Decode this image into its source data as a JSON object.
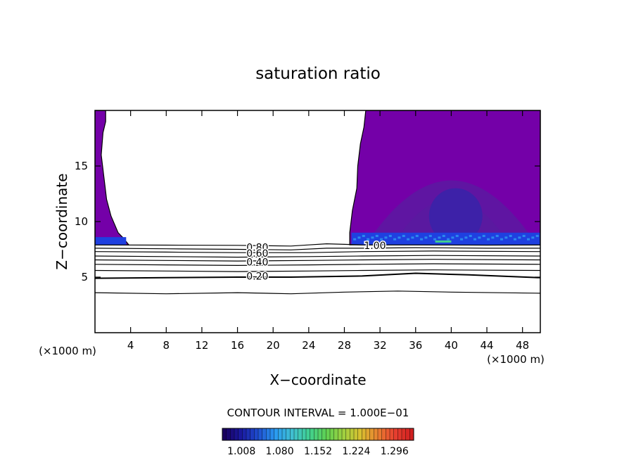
{
  "chart_data": {
    "type": "contour",
    "title": "saturation ratio",
    "xlabel": "X−coordinate",
    "ylabel": "Z−coordinate",
    "x_unit_left": "(×1000 m)",
    "x_unit_right": "(×1000 m)",
    "xlim": [
      0,
      50
    ],
    "ylim": [
      0,
      20
    ],
    "x_ticks": [
      4,
      8,
      12,
      16,
      20,
      24,
      28,
      32,
      36,
      40,
      44,
      48
    ],
    "y_ticks": [
      5,
      10,
      15
    ],
    "contour_interval_text": "CONTOUR INTERVAL = 1.000E−01",
    "contour_labels": [
      {
        "text": "0.80",
        "x": 17.0,
        "z": 7.7
      },
      {
        "text": "0.60",
        "x": 17.0,
        "z": 7.15
      },
      {
        "text": "0.40",
        "x": 17.0,
        "z": 6.35
      },
      {
        "text": "0.20",
        "x": 17.0,
        "z": 5.1
      },
      {
        "text": "1.00",
        "x": 30.2,
        "z": 7.85
      }
    ],
    "contour_lines": [
      {
        "level": 0.9,
        "points": [
          [
            0,
            7.9
          ],
          [
            8,
            7.88
          ],
          [
            16,
            7.86
          ],
          [
            22,
            7.8
          ],
          [
            24,
            7.9
          ],
          [
            26,
            8.0
          ],
          [
            28,
            7.95
          ],
          [
            30,
            7.9
          ],
          [
            36,
            7.9
          ],
          [
            44,
            7.88
          ],
          [
            50,
            7.9
          ]
        ]
      },
      {
        "level": 0.8,
        "points": [
          [
            0,
            7.6
          ],
          [
            8,
            7.55
          ],
          [
            16,
            7.5
          ],
          [
            22,
            7.45
          ],
          [
            26,
            7.6
          ],
          [
            30,
            7.6
          ],
          [
            36,
            7.65
          ],
          [
            44,
            7.6
          ],
          [
            50,
            7.6
          ]
        ]
      },
      {
        "level": 0.7,
        "points": [
          [
            0,
            7.3
          ],
          [
            8,
            7.25
          ],
          [
            16,
            7.2
          ],
          [
            24,
            7.2
          ],
          [
            30,
            7.3
          ],
          [
            38,
            7.35
          ],
          [
            50,
            7.3
          ]
        ]
      },
      {
        "level": 0.6,
        "points": [
          [
            0,
            6.9
          ],
          [
            8,
            6.85
          ],
          [
            16,
            6.8
          ],
          [
            24,
            6.85
          ],
          [
            30,
            6.9
          ],
          [
            38,
            6.95
          ],
          [
            50,
            6.9
          ]
        ]
      },
      {
        "level": 0.5,
        "points": [
          [
            0,
            6.55
          ],
          [
            8,
            6.5
          ],
          [
            16,
            6.45
          ],
          [
            24,
            6.5
          ],
          [
            30,
            6.55
          ],
          [
            38,
            6.6
          ],
          [
            50,
            6.55
          ]
        ]
      },
      {
        "level": 0.4,
        "points": [
          [
            0,
            6.15
          ],
          [
            8,
            6.1
          ],
          [
            16,
            6.05
          ],
          [
            24,
            6.1
          ],
          [
            30,
            6.15
          ],
          [
            38,
            6.2
          ],
          [
            50,
            6.15
          ]
        ]
      },
      {
        "level": 0.3,
        "points": [
          [
            0,
            5.6
          ],
          [
            8,
            5.55
          ],
          [
            16,
            5.5
          ],
          [
            24,
            5.55
          ],
          [
            30,
            5.6
          ],
          [
            38,
            5.65
          ],
          [
            50,
            5.6
          ]
        ]
      },
      {
        "level": 0.2,
        "points": [
          [
            0,
            4.9
          ],
          [
            8,
            4.95
          ],
          [
            16,
            5.0
          ],
          [
            22,
            5.0
          ],
          [
            30,
            5.1
          ],
          [
            36,
            5.35
          ],
          [
            42,
            5.2
          ],
          [
            50,
            4.95
          ]
        ]
      },
      {
        "level": 0.1,
        "points": [
          [
            0,
            3.6
          ],
          [
            8,
            3.5
          ],
          [
            16,
            3.6
          ],
          [
            22,
            3.5
          ],
          [
            28,
            3.65
          ],
          [
            34,
            3.75
          ],
          [
            40,
            3.65
          ],
          [
            50,
            3.55
          ]
        ]
      }
    ],
    "filled_regions": [
      {
        "name": "left-supersaturated-column",
        "value_range": [
          1.0,
          1.08
        ],
        "outline": [
          [
            0,
            20
          ],
          [
            1.2,
            20
          ],
          [
            1.2,
            19
          ],
          [
            0.9,
            18
          ],
          [
            0.7,
            16
          ],
          [
            1.0,
            14
          ],
          [
            1.3,
            12
          ],
          [
            1.8,
            10.5
          ],
          [
            2.6,
            9.0
          ],
          [
            3.2,
            8.5
          ],
          [
            3.8,
            7.9
          ],
          [
            0,
            7.9
          ]
        ]
      },
      {
        "name": "right-supersaturated-region",
        "value_range": [
          1.0,
          1.1
        ],
        "outline": [
          [
            30.4,
            20
          ],
          [
            50,
            20
          ],
          [
            50,
            7.9
          ],
          [
            28.6,
            7.9
          ],
          [
            28.6,
            9.0
          ],
          [
            28.9,
            11
          ],
          [
            29.4,
            13
          ],
          [
            29.5,
            15
          ],
          [
            29.8,
            17
          ],
          [
            30.2,
            18.5
          ],
          [
            30.4,
            20
          ]
        ]
      }
    ],
    "colorbar": {
      "min": 0.972,
      "max": 1.332,
      "ticks": [
        "1.008",
        "1.080",
        "1.152",
        "1.224",
        "1.296"
      ],
      "palette": [
        "#1a0060",
        "#1a1aa0",
        "#1f4fd0",
        "#2a9af0",
        "#40c0d0",
        "#40d090",
        "#60d050",
        "#a0d040",
        "#d8c030",
        "#e88030",
        "#e84030",
        "#d02020"
      ]
    },
    "colors": {
      "base_fill": "#7400a8",
      "deeper_fill": "#5a1aa0",
      "core_fill": "#3a22a8",
      "blue_band": "#1f40e0",
      "bright_band": "#2f9af0"
    },
    "grid": false,
    "legend": "none"
  }
}
